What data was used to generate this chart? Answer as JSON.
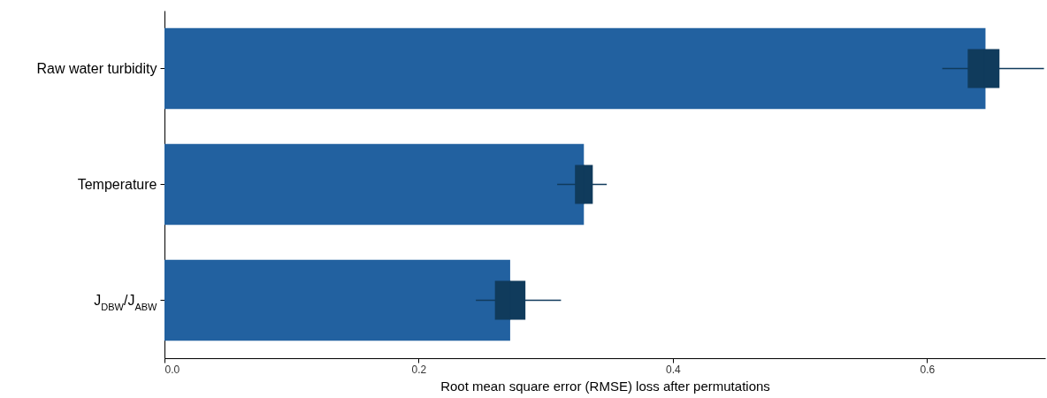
{
  "chart_data": {
    "type": "bar",
    "orientation": "horizontal",
    "xlabel": "Root mean square error (RMSE) loss after permutations",
    "categories": [
      "Raw water turbidity",
      "Temperature",
      "J$_{DBW}$/J$_{ABW}$"
    ],
    "series": [
      {
        "color": "#2261a0",
        "values": [
          0.646,
          0.33,
          0.272
        ]
      },
      {
        "type": "box",
        "color": "#103b5c",
        "boxes": [
          {
            "low": 0.612,
            "q1": 0.632,
            "median": 0.645,
            "q3": 0.657,
            "high": 0.692
          },
          {
            "low": 0.309,
            "q1": 0.323,
            "median": 0.33,
            "q3": 0.337,
            "high": 0.348
          },
          {
            "low": 0.245,
            "q1": 0.26,
            "median": 0.272,
            "q3": 0.284,
            "high": 0.312
          }
        ]
      }
    ],
    "xlim": [
      0,
      0.693
    ],
    "xticks": [
      {
        "value": 0,
        "label": "0.0"
      },
      {
        "value": 0.2,
        "label": "0.2"
      },
      {
        "value": 0.4,
        "label": "0.4"
      },
      {
        "value": 0.6,
        "label": "0.6"
      }
    ],
    "grid": false
  }
}
